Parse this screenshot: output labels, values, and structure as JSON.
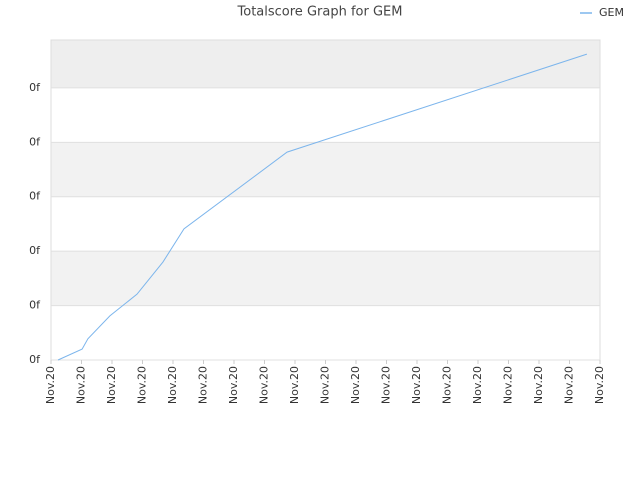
{
  "chart_data": {
    "type": "line",
    "title": "Totalscore Graph for GEM",
    "xlim": [
      0,
      18
    ],
    "xticks": [
      {
        "value": 0,
        "label": "Nov.20"
      },
      {
        "value": 1,
        "label": "Nov.20"
      },
      {
        "value": 2,
        "label": "Nov.20"
      },
      {
        "value": 3,
        "label": "Nov.20"
      },
      {
        "value": 4,
        "label": "Nov.20"
      },
      {
        "value": 5,
        "label": "Nov.20"
      },
      {
        "value": 6,
        "label": "Nov.20"
      },
      {
        "value": 7,
        "label": "Nov.20"
      },
      {
        "value": 8,
        "label": "Nov.20"
      },
      {
        "value": 9,
        "label": "Nov.20"
      },
      {
        "value": 10,
        "label": "Nov.20"
      },
      {
        "value": 11,
        "label": "Nov.20"
      },
      {
        "value": 12,
        "label": "Nov.20"
      },
      {
        "value": 13,
        "label": "Nov.20"
      },
      {
        "value": 14,
        "label": "Nov.20"
      },
      {
        "value": 15,
        "label": "Nov.20"
      },
      {
        "value": 16,
        "label": "Nov.20"
      },
      {
        "value": 17,
        "label": "Nov.20"
      },
      {
        "value": 18,
        "label": "Nov.20"
      }
    ],
    "ylim": [
      0,
      5.88
    ],
    "yticks": [
      {
        "value": 0,
        "label": "0f"
      },
      {
        "value": 1,
        "label": "0f"
      },
      {
        "value": 2,
        "label": "0f"
      },
      {
        "value": 3,
        "label": "0f"
      },
      {
        "value": 4,
        "label": "0f"
      },
      {
        "value": 5,
        "label": "0f"
      }
    ],
    "grid": true,
    "legend": "top-right",
    "x": [
      0.23,
      1.02,
      1.21,
      1.93,
      2.82,
      3.67,
      4.36,
      7.74,
      17.57
    ],
    "series": [
      {
        "name": "GEM",
        "color": "#7cb5ec",
        "values": [
          0,
          0.2,
          0.39,
          0.81,
          1.21,
          1.8,
          2.41,
          3.82,
          5.62
        ]
      }
    ]
  }
}
